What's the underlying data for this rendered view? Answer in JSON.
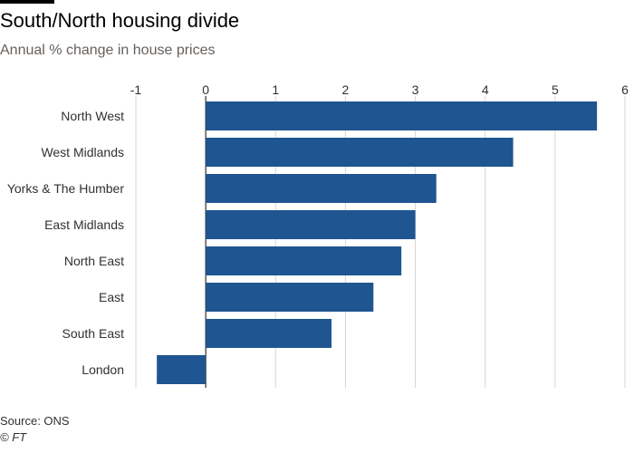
{
  "title": "South/North housing divide",
  "subtitle": "Annual % change in house prices",
  "source": "Source: ONS",
  "credit": "© FT",
  "colors": {
    "bar": "#1f5590",
    "grid": "#d9d5d0",
    "zero_line": "#33302e",
    "text": "#33302e"
  },
  "chart_data": {
    "type": "bar",
    "orientation": "horizontal",
    "categories": [
      "North West",
      "West Midlands",
      "Yorks & The Humber",
      "East Midlands",
      "North East",
      "East",
      "South East",
      "London"
    ],
    "values": [
      5.6,
      4.4,
      3.3,
      3.0,
      2.8,
      2.4,
      1.8,
      -0.7
    ],
    "xlim": [
      -1,
      6
    ],
    "xticks": [
      -1,
      0,
      1,
      2,
      3,
      4,
      5,
      6
    ],
    "xtick_labels": [
      "-1",
      "0",
      "1",
      "2",
      "3",
      "4",
      "5",
      "6"
    ],
    "grid": true,
    "xaxis_position": "top"
  }
}
